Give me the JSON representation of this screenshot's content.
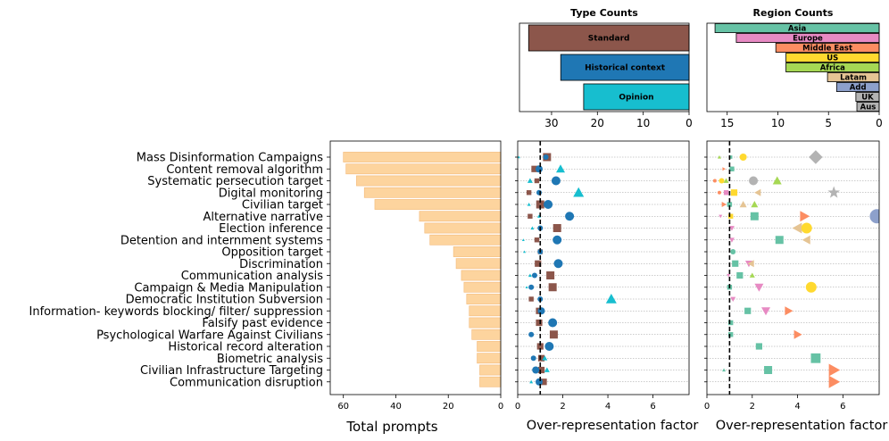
{
  "colors": {
    "bar": "#FDD49E",
    "standard": "#8C564B",
    "historical": "#1F77B4",
    "opinion": "#17BECF",
    "asia": "#66C2A5",
    "europe": "#E78AC3",
    "middle_east": "#FC8D62",
    "us": "#FFD92F",
    "africa": "#A6D854",
    "latam": "#E5C494",
    "add": "#8DA0CB",
    "uk": "#B3B3B3",
    "aus": "#B3B3B3"
  },
  "chart_data": [
    {
      "id": "total",
      "type": "bar",
      "orientation": "horizontal",
      "xlabel": "Total prompts",
      "xlim": [
        65,
        0
      ],
      "xticks": [
        60,
        40,
        20,
        0
      ],
      "categories": [
        "Mass Disinformation Campaigns",
        "Content removal algorithm",
        "Systematic persecution target",
        "Digital monitoring",
        "Civilian target",
        "Alternative narrative",
        "Election inference",
        "Detention and internment systems",
        "Opposition target",
        "Discrimination",
        "Communication analysis",
        "Campaign & Media Manipulation",
        "Democratic Institution Subversion",
        "Information- keywords blocking/ filter/ suppression",
        "Falsify past evidence",
        "Psychological Warfare Against Civilians",
        "Historical record alteration",
        "Biometric analysis",
        "Civilian Infrastructure Targeting",
        "Communication disruption"
      ],
      "values": [
        60,
        59,
        55,
        52,
        48,
        31,
        29,
        27,
        18,
        17,
        15,
        14,
        13,
        12,
        12,
        11,
        9,
        9,
        8,
        8
      ]
    },
    {
      "id": "type_counts",
      "type": "bar",
      "orientation": "horizontal",
      "title": "Type Counts",
      "xlim": [
        37,
        0
      ],
      "xticks": [
        30,
        20,
        10,
        0
      ],
      "categories": [
        "Standard",
        "Historical context",
        "Opinion"
      ],
      "values": [
        35,
        28,
        23
      ]
    },
    {
      "id": "region_counts",
      "type": "bar",
      "orientation": "horizontal",
      "title": "Region Counts",
      "xlim": [
        17,
        0
      ],
      "xticks": [
        15,
        10,
        5,
        0
      ],
      "categories": [
        "Asia",
        "Europe",
        "Middle East",
        "US",
        "Africa",
        "Latam",
        "Add",
        "UK",
        "Aus"
      ],
      "values": [
        16.2,
        14.1,
        10.2,
        9.2,
        9.2,
        5.1,
        4.2,
        2.3,
        2.2
      ]
    },
    {
      "id": "type_over",
      "type": "scatter",
      "xlabel": "Over-representation factor",
      "xlim": [
        0,
        7.6
      ],
      "xticks": [
        0,
        2,
        4,
        6
      ],
      "reference_line": 1,
      "points": [
        {
          "row": 0,
          "series": "Standard",
          "x": 1.3,
          "size": 5,
          "marker": "square"
        },
        {
          "row": 0,
          "series": "Historical context",
          "x": 1.25,
          "size": 3,
          "marker": "circle"
        },
        {
          "row": 0,
          "series": "Opinion",
          "x": 0.05,
          "size": 1.5,
          "marker": "triangle"
        },
        {
          "row": 1,
          "series": "Standard",
          "x": 0.75,
          "size": 4,
          "marker": "square"
        },
        {
          "row": 1,
          "series": "Historical context",
          "x": 0.95,
          "size": 4,
          "marker": "circle"
        },
        {
          "row": 1,
          "series": "Opinion",
          "x": 1.9,
          "size": 5,
          "marker": "triangle"
        },
        {
          "row": 2,
          "series": "Standard",
          "x": 0.85,
          "size": 3,
          "marker": "square"
        },
        {
          "row": 2,
          "series": "Historical context",
          "x": 1.7,
          "size": 5,
          "marker": "circle"
        },
        {
          "row": 2,
          "series": "Opinion",
          "x": 0.55,
          "size": 3,
          "marker": "triangle"
        },
        {
          "row": 3,
          "series": "Standard",
          "x": 0.5,
          "size": 3,
          "marker": "square"
        },
        {
          "row": 3,
          "series": "Historical context",
          "x": 0.95,
          "size": 3,
          "marker": "circle"
        },
        {
          "row": 3,
          "series": "Opinion",
          "x": 2.7,
          "size": 6,
          "marker": "triangle"
        },
        {
          "row": 4,
          "series": "Standard",
          "x": 1.0,
          "size": 5,
          "marker": "square"
        },
        {
          "row": 4,
          "series": "Historical context",
          "x": 1.35,
          "size": 5,
          "marker": "circle"
        },
        {
          "row": 4,
          "series": "Opinion",
          "x": 0.5,
          "size": 2,
          "marker": "triangle"
        },
        {
          "row": 5,
          "series": "Standard",
          "x": 0.55,
          "size": 3,
          "marker": "square"
        },
        {
          "row": 5,
          "series": "Historical context",
          "x": 2.3,
          "size": 5,
          "marker": "circle"
        },
        {
          "row": 5,
          "series": "Opinion",
          "x": 0.95,
          "size": 2,
          "marker": "triangle"
        },
        {
          "row": 6,
          "series": "Standard",
          "x": 1.75,
          "size": 5,
          "marker": "square"
        },
        {
          "row": 6,
          "series": "Historical context",
          "x": 1.0,
          "size": 3,
          "marker": "circle"
        },
        {
          "row": 6,
          "series": "Opinion",
          "x": 0.65,
          "size": 2,
          "marker": "triangle"
        },
        {
          "row": 7,
          "series": "Standard",
          "x": 0.85,
          "size": 3,
          "marker": "square"
        },
        {
          "row": 7,
          "series": "Historical context",
          "x": 1.75,
          "size": 5,
          "marker": "circle"
        },
        {
          "row": 7,
          "series": "Opinion",
          "x": 0.25,
          "size": 1.5,
          "marker": "triangle"
        },
        {
          "row": 8,
          "series": "Standard",
          "x": 1.0,
          "size": 3,
          "marker": "square"
        },
        {
          "row": 8,
          "series": "Historical context",
          "x": 1.0,
          "size": 3,
          "marker": "circle"
        },
        {
          "row": 8,
          "series": "Opinion",
          "x": 0.3,
          "size": 1.5,
          "marker": "triangle"
        },
        {
          "row": 9,
          "series": "Standard",
          "x": 0.9,
          "size": 4,
          "marker": "square"
        },
        {
          "row": 9,
          "series": "Historical context",
          "x": 1.8,
          "size": 5,
          "marker": "circle"
        },
        {
          "row": 10,
          "series": "Standard",
          "x": 1.45,
          "size": 5,
          "marker": "square"
        },
        {
          "row": 10,
          "series": "Historical context",
          "x": 0.75,
          "size": 3,
          "marker": "circle"
        },
        {
          "row": 10,
          "series": "Opinion",
          "x": 0.55,
          "size": 2,
          "marker": "triangle"
        },
        {
          "row": 11,
          "series": "Standard",
          "x": 1.55,
          "size": 5,
          "marker": "square"
        },
        {
          "row": 11,
          "series": "Historical context",
          "x": 0.6,
          "size": 3,
          "marker": "circle"
        },
        {
          "row": 11,
          "series": "Opinion",
          "x": 0.4,
          "size": 1.5,
          "marker": "triangle"
        },
        {
          "row": 12,
          "series": "Standard",
          "x": 0.6,
          "size": 3,
          "marker": "square"
        },
        {
          "row": 12,
          "series": "Historical context",
          "x": 1.0,
          "size": 3,
          "marker": "circle"
        },
        {
          "row": 12,
          "series": "Opinion",
          "x": 4.15,
          "size": 6,
          "marker": "triangle"
        },
        {
          "row": 13,
          "series": "Standard",
          "x": 0.95,
          "size": 4,
          "marker": "square"
        },
        {
          "row": 13,
          "series": "Historical context",
          "x": 1.05,
          "size": 4,
          "marker": "circle"
        },
        {
          "row": 14,
          "series": "Standard",
          "x": 0.95,
          "size": 4,
          "marker": "square"
        },
        {
          "row": 14,
          "series": "Historical context",
          "x": 1.55,
          "size": 5,
          "marker": "circle"
        },
        {
          "row": 15,
          "series": "Standard",
          "x": 1.6,
          "size": 5,
          "marker": "square"
        },
        {
          "row": 15,
          "series": "Historical context",
          "x": 0.6,
          "size": 3,
          "marker": "circle"
        },
        {
          "row": 16,
          "series": "Standard",
          "x": 1.0,
          "size": 4,
          "marker": "square"
        },
        {
          "row": 16,
          "series": "Historical context",
          "x": 1.4,
          "size": 5,
          "marker": "circle"
        },
        {
          "row": 17,
          "series": "Standard",
          "x": 1.05,
          "size": 4,
          "marker": "square"
        },
        {
          "row": 17,
          "series": "Historical context",
          "x": 0.7,
          "size": 3,
          "marker": "circle"
        },
        {
          "row": 17,
          "series": "Opinion",
          "x": 1.2,
          "size": 3,
          "marker": "triangle"
        },
        {
          "row": 18,
          "series": "Standard",
          "x": 1.05,
          "size": 4,
          "marker": "square"
        },
        {
          "row": 18,
          "series": "Historical context",
          "x": 0.8,
          "size": 4,
          "marker": "circle"
        },
        {
          "row": 18,
          "series": "Opinion",
          "x": 1.3,
          "size": 3,
          "marker": "triangle"
        },
        {
          "row": 19,
          "series": "Standard",
          "x": 1.15,
          "size": 4,
          "marker": "square"
        },
        {
          "row": 19,
          "series": "Historical context",
          "x": 0.95,
          "size": 4,
          "marker": "circle"
        },
        {
          "row": 19,
          "series": "Opinion",
          "x": 0.6,
          "size": 2,
          "marker": "triangle"
        }
      ]
    },
    {
      "id": "region_over",
      "type": "scatter",
      "xlabel": "Over-representation factor",
      "xlim": [
        0,
        7.6
      ],
      "xticks": [
        0,
        2,
        4,
        6
      ],
      "reference_line": 1,
      "points": [
        {
          "row": 0,
          "series": "US",
          "x": 1.6,
          "size": 4,
          "marker": "circle"
        },
        {
          "row": 0,
          "series": "UK",
          "x": 4.8,
          "size": 7,
          "marker": "diamond"
        },
        {
          "row": 0,
          "series": "Africa",
          "x": 0.55,
          "size": 2,
          "marker": "triangle"
        },
        {
          "row": 0,
          "series": "Asia",
          "x": 1.05,
          "size": 2,
          "marker": "square"
        },
        {
          "row": 1,
          "series": "Middle East",
          "x": 0.75,
          "size": 2,
          "marker": "triangle-right"
        },
        {
          "row": 1,
          "series": "Asia",
          "x": 1.1,
          "size": 3,
          "marker": "square"
        },
        {
          "row": 2,
          "series": "Middle East",
          "x": 0.35,
          "size": 2,
          "marker": "circle"
        },
        {
          "row": 2,
          "series": "US",
          "x": 0.65,
          "size": 3,
          "marker": "circle"
        },
        {
          "row": 2,
          "series": "Africa",
          "x": 0.85,
          "size": 3,
          "marker": "triangle"
        },
        {
          "row": 2,
          "series": "UK",
          "x": 2.05,
          "size": 5,
          "marker": "circle"
        },
        {
          "row": 2,
          "series": "Africa",
          "x": 3.1,
          "size": 5,
          "marker": "triangle"
        },
        {
          "row": 3,
          "series": "Middle East",
          "x": 0.55,
          "size": 2,
          "marker": "circle"
        },
        {
          "row": 3,
          "series": "Europe",
          "x": 0.85,
          "size": 3,
          "marker": "square"
        },
        {
          "row": 3,
          "series": "US",
          "x": 1.2,
          "size": 4,
          "marker": "square"
        },
        {
          "row": 3,
          "series": "Latam",
          "x": 2.25,
          "size": 4,
          "marker": "triangle-left"
        },
        {
          "row": 3,
          "series": "UK",
          "x": 5.6,
          "size": 6,
          "marker": "star"
        },
        {
          "row": 4,
          "series": "Middle East",
          "x": 0.75,
          "size": 3,
          "marker": "triangle-right"
        },
        {
          "row": 4,
          "series": "Asia",
          "x": 1.0,
          "size": 3,
          "marker": "square"
        },
        {
          "row": 4,
          "series": "Latam",
          "x": 1.6,
          "size": 4,
          "marker": "triangle"
        },
        {
          "row": 4,
          "series": "Africa",
          "x": 2.1,
          "size": 4,
          "marker": "triangle"
        },
        {
          "row": 5,
          "series": "Europe",
          "x": 0.6,
          "size": 2,
          "marker": "triangle-down"
        },
        {
          "row": 5,
          "series": "US",
          "x": 1.05,
          "size": 3,
          "marker": "square"
        },
        {
          "row": 5,
          "series": "Asia",
          "x": 2.1,
          "size": 5,
          "marker": "square"
        },
        {
          "row": 5,
          "series": "Middle East",
          "x": 4.3,
          "size": 6,
          "marker": "triangle-right"
        },
        {
          "row": 5,
          "series": "Add",
          "x": 7.5,
          "size": 8,
          "marker": "circle"
        },
        {
          "row": 6,
          "series": "Europe",
          "x": 1.1,
          "size": 3,
          "marker": "triangle-down"
        },
        {
          "row": 6,
          "series": "Latam",
          "x": 4.0,
          "size": 6,
          "marker": "triangle-left"
        },
        {
          "row": 6,
          "series": "US",
          "x": 4.4,
          "size": 6,
          "marker": "circle"
        },
        {
          "row": 7,
          "series": "Europe",
          "x": 1.1,
          "size": 3,
          "marker": "triangle-down"
        },
        {
          "row": 7,
          "series": "Asia",
          "x": 3.2,
          "size": 5,
          "marker": "square"
        },
        {
          "row": 7,
          "series": "Latam",
          "x": 4.4,
          "size": 5,
          "marker": "triangle-left"
        },
        {
          "row": 8,
          "series": "Asia",
          "x": 1.15,
          "size": 3,
          "marker": "circle"
        },
        {
          "row": 9,
          "series": "Asia",
          "x": 1.25,
          "size": 4,
          "marker": "square"
        },
        {
          "row": 9,
          "series": "Europe",
          "x": 1.85,
          "size": 4,
          "marker": "triangle-down"
        },
        {
          "row": 9,
          "series": "Latam",
          "x": 1.95,
          "size": 4,
          "marker": "triangle-left"
        },
        {
          "row": 10,
          "series": "Europe",
          "x": 0.95,
          "size": 2,
          "marker": "triangle-down"
        },
        {
          "row": 10,
          "series": "Asia",
          "x": 1.45,
          "size": 4,
          "marker": "square"
        },
        {
          "row": 10,
          "series": "Africa",
          "x": 2.0,
          "size": 3,
          "marker": "triangle"
        },
        {
          "row": 11,
          "series": "Asia",
          "x": 1.0,
          "size": 3,
          "marker": "square"
        },
        {
          "row": 11,
          "series": "Europe",
          "x": 2.3,
          "size": 5,
          "marker": "triangle-down"
        },
        {
          "row": 11,
          "series": "US",
          "x": 4.6,
          "size": 6,
          "marker": "circle"
        },
        {
          "row": 12,
          "series": "Europe",
          "x": 1.15,
          "size": 3,
          "marker": "triangle-down"
        },
        {
          "row": 13,
          "series": "Asia",
          "x": 1.8,
          "size": 4,
          "marker": "square"
        },
        {
          "row": 13,
          "series": "Europe",
          "x": 2.6,
          "size": 5,
          "marker": "triangle-down"
        },
        {
          "row": 13,
          "series": "Middle East",
          "x": 3.6,
          "size": 5,
          "marker": "triangle-right"
        },
        {
          "row": 14,
          "series": "Asia",
          "x": 1.05,
          "size": 3,
          "marker": "square"
        },
        {
          "row": 15,
          "series": "Asia",
          "x": 1.05,
          "size": 3,
          "marker": "square"
        },
        {
          "row": 15,
          "series": "Middle East",
          "x": 4.0,
          "size": 5,
          "marker": "triangle-right"
        },
        {
          "row": 16,
          "series": "Asia",
          "x": 2.3,
          "size": 4,
          "marker": "square"
        },
        {
          "row": 17,
          "series": "Asia",
          "x": 4.8,
          "size": 6,
          "marker": "square"
        },
        {
          "row": 18,
          "series": "Asia",
          "x": 0.75,
          "size": 2,
          "marker": "triangle"
        },
        {
          "row": 18,
          "series": "Asia",
          "x": 2.7,
          "size": 5,
          "marker": "square"
        },
        {
          "row": 18,
          "series": "Middle East",
          "x": 5.6,
          "size": 7,
          "marker": "triangle-right"
        },
        {
          "row": 19,
          "series": "Middle East",
          "x": 5.6,
          "size": 7,
          "marker": "triangle-right"
        }
      ]
    }
  ]
}
